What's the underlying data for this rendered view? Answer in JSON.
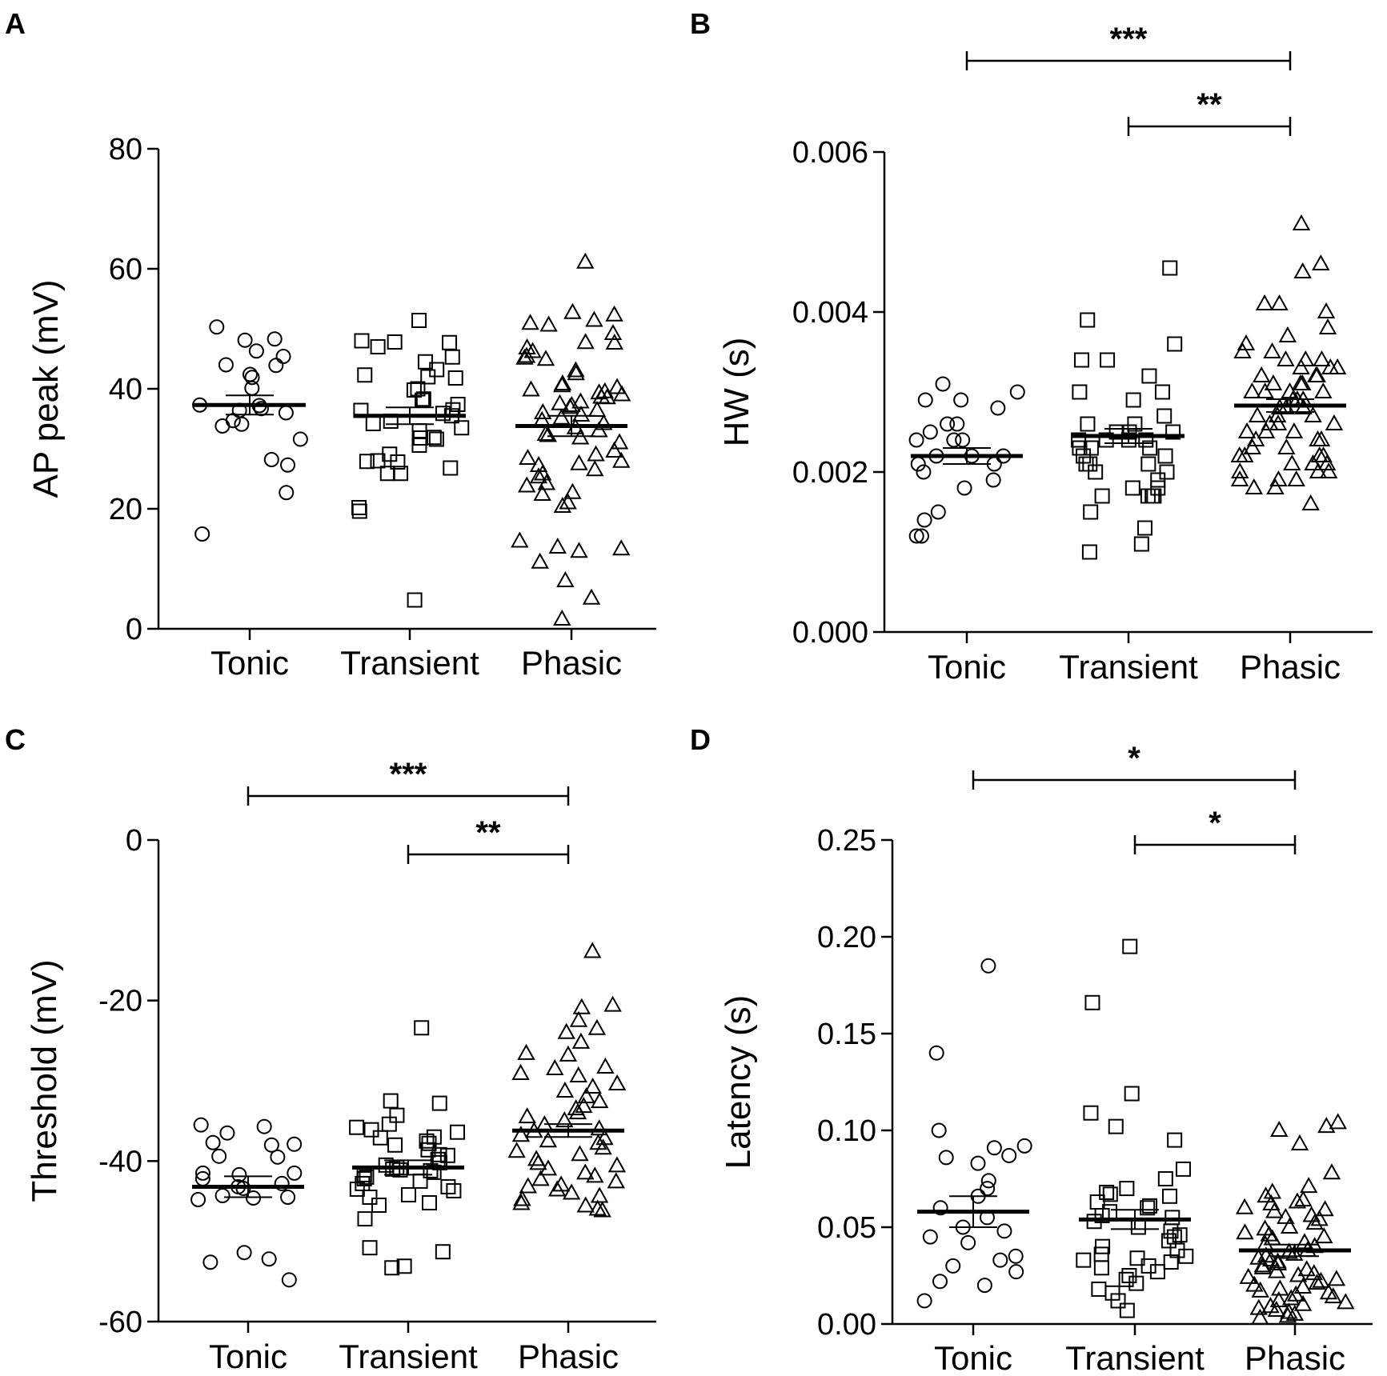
{
  "chart_data": [
    {
      "panel": "A",
      "type": "scatter",
      "ylabel": "AP peak (mV)",
      "categories": [
        "Tonic",
        "Transient",
        "Phasic"
      ],
      "ylim": [
        0,
        80
      ],
      "yticks": [
        "0",
        "20",
        "40",
        "60",
        "80"
      ],
      "marker": [
        "circle",
        "square",
        "triangle"
      ],
      "means": [
        37.3,
        35.5,
        33.8
      ],
      "sem": [
        1.6,
        1.4,
        1.7
      ],
      "significance": [],
      "series": [
        {
          "name": "Tonic",
          "values": [
            50.3,
            48.3,
            46.3,
            48.1,
            44.0,
            45.4,
            43.9,
            42.4,
            41.9,
            40.1,
            37.3,
            37.2,
            36.7,
            36.4,
            36.0,
            34.7,
            34.1,
            33.8,
            31.6,
            28.2,
            27.3,
            22.7,
            15.8
          ]
        },
        {
          "name": "Transient",
          "values": [
            51.4,
            48.0,
            47.8,
            47.7,
            47.0,
            45.3,
            44.5,
            43.2,
            42.3,
            42.0,
            41.8,
            40.0,
            39.8,
            38.3,
            38.1,
            37.4,
            36.5,
            36.4,
            35.9,
            35.5,
            34.6,
            34.2,
            33.5,
            33.0,
            31.9,
            31.8,
            31.6,
            30.6,
            29.1,
            28.0,
            27.9,
            27.8,
            26.8,
            25.9,
            25.9,
            20.2,
            19.6,
            4.8
          ]
        },
        {
          "name": "Phasic",
          "values": [
            61.1,
            52.7,
            52.3,
            51.4,
            50.9,
            50.6,
            49.2,
            47.7,
            47.6,
            46.8,
            46.2,
            45.4,
            45.1,
            44.9,
            43.0,
            42.5,
            40.8,
            40.5,
            40.2,
            39.8,
            39.5,
            39.3,
            39.0,
            38.6,
            38.5,
            37.8,
            37.5,
            37.2,
            36.9,
            36.4,
            36.0,
            35.6,
            35.1,
            34.7,
            34.2,
            33.5,
            33.0,
            32.4,
            32.2,
            31.8,
            31.0,
            29.6,
            29.0,
            28.4,
            27.9,
            27.5,
            27.2,
            26.5,
            25.8,
            25.3,
            24.2,
            23.8,
            22.7,
            22.4,
            21.0,
            20.4,
            14.6,
            13.6,
            13.3,
            12.9,
            11.1,
            8.0,
            5.1,
            1.6
          ]
        }
      ]
    },
    {
      "panel": "B",
      "type": "scatter",
      "ylabel": "HW (s)",
      "categories": [
        "Tonic",
        "Transient",
        "Phasic"
      ],
      "ylim": [
        0,
        0.006
      ],
      "yticks": [
        "0.000",
        "0.002",
        "0.004",
        "0.006"
      ],
      "marker": [
        "circle",
        "square",
        "triangle"
      ],
      "means": [
        0.0022,
        0.00245,
        0.00283
      ],
      "sem": [
        0.0001,
        9e-05,
        8e-05
      ],
      "significance": [
        {
          "from": 0,
          "to": 2,
          "label": "***"
        },
        {
          "from": 1,
          "to": 2,
          "label": "**"
        }
      ],
      "series": [
        {
          "name": "Tonic",
          "values": [
            0.0031,
            0.003,
            0.0029,
            0.0029,
            0.0028,
            0.0026,
            0.0026,
            0.0025,
            0.0024,
            0.0024,
            0.0024,
            0.0022,
            0.0022,
            0.0022,
            0.0021,
            0.0021,
            0.002,
            0.0019,
            0.0018,
            0.0015,
            0.0014,
            0.0012,
            0.0012
          ]
        },
        {
          "name": "Transient",
          "values": [
            0.00455,
            0.0039,
            0.0036,
            0.0034,
            0.0034,
            0.0032,
            0.003,
            0.003,
            0.0029,
            0.0027,
            0.0026,
            0.0026,
            0.0025,
            0.0025,
            0.0025,
            0.0024,
            0.0024,
            0.0024,
            0.0024,
            0.0023,
            0.0023,
            0.0023,
            0.0022,
            0.0022,
            0.0021,
            0.0021,
            0.0021,
            0.002,
            0.002,
            0.0019,
            0.0018,
            0.0018,
            0.0017,
            0.0017,
            0.0017,
            0.0017,
            0.0015,
            0.0013,
            0.0011,
            0.001
          ]
        },
        {
          "name": "Phasic",
          "values": [
            0.0051,
            0.0046,
            0.0045,
            0.0041,
            0.0041,
            0.004,
            0.0038,
            0.0037,
            0.0036,
            0.0035,
            0.0035,
            0.0034,
            0.0034,
            0.0034,
            0.0033,
            0.0033,
            0.0033,
            0.0032,
            0.0032,
            0.0032,
            0.0031,
            0.0031,
            0.0031,
            0.003,
            0.003,
            0.003,
            0.003,
            0.0029,
            0.0029,
            0.0029,
            0.0028,
            0.0028,
            0.0028,
            0.0027,
            0.0027,
            0.0027,
            0.0026,
            0.0026,
            0.0026,
            0.0025,
            0.0025,
            0.0025,
            0.0024,
            0.0024,
            0.0024,
            0.0023,
            0.0023,
            0.0022,
            0.0022,
            0.0022,
            0.0022,
            0.0021,
            0.0021,
            0.0021,
            0.002,
            0.002,
            0.002,
            0.0019,
            0.0019,
            0.0019,
            0.0018,
            0.0018,
            0.0016
          ]
        }
      ]
    },
    {
      "panel": "C",
      "type": "scatter",
      "ylabel": "Threshold (mV)",
      "categories": [
        "Tonic",
        "Transient",
        "Phasic"
      ],
      "ylim": [
        -60,
        0
      ],
      "yticks": [
        "-60",
        "-40",
        "-20",
        "0"
      ],
      "marker": [
        "circle",
        "square",
        "triangle"
      ],
      "means": [
        -43.2,
        -40.8,
        -36.2
      ],
      "sem": [
        1.3,
        0.9,
        0.8
      ],
      "significance": [
        {
          "from": 0,
          "to": 2,
          "label": "***"
        },
        {
          "from": 1,
          "to": 2,
          "label": "**"
        }
      ],
      "series": [
        {
          "name": "Tonic",
          "values": [
            -35.5,
            -35.7,
            -36.5,
            -37.7,
            -37.9,
            -38.0,
            -39.4,
            -39.5,
            -41.5,
            -41.5,
            -41.7,
            -42.2,
            -42.8,
            -43.2,
            -43.4,
            -44.3,
            -44.5,
            -44.6,
            -44.8,
            -51.4,
            -52.2,
            -52.6,
            -54.8
          ]
        },
        {
          "name": "Transient",
          "values": [
            -23.4,
            -32.5,
            -32.8,
            -34.3,
            -35.4,
            -35.8,
            -36.1,
            -36.4,
            -37.0,
            -37.1,
            -37.5,
            -37.8,
            -38.0,
            -38.6,
            -39.2,
            -39.3,
            -39.8,
            -40.2,
            -40.5,
            -40.8,
            -41.0,
            -41.1,
            -41.2,
            -41.4,
            -41.7,
            -42.0,
            -42.2,
            -42.5,
            -42.8,
            -43.2,
            -43.5,
            -43.7,
            -44.2,
            -44.5,
            -45.2,
            -45.5,
            -47.2,
            -50.8,
            -51.3,
            -53.1,
            -53.3
          ]
        },
        {
          "name": "Phasic",
          "values": [
            -13.9,
            -20.6,
            -20.9,
            -22.5,
            -23.5,
            -24.0,
            -25.2,
            -26.6,
            -26.8,
            -28.3,
            -28.5,
            -29.1,
            -29.4,
            -30.4,
            -30.8,
            -31.3,
            -32.0,
            -32.6,
            -33.2,
            -33.5,
            -34.0,
            -34.5,
            -35.0,
            -35.5,
            -36.0,
            -36.3,
            -36.8,
            -37.2,
            -37.5,
            -37.8,
            -38.4,
            -38.8,
            -39.2,
            -39.8,
            -40.3,
            -40.6,
            -41.0,
            -41.5,
            -41.9,
            -42.3,
            -42.6,
            -43.0,
            -43.2,
            -43.6,
            -44.0,
            -44.4,
            -44.8,
            -45.3,
            -45.6,
            -46.0,
            -46.2
          ]
        }
      ]
    },
    {
      "panel": "D",
      "type": "scatter",
      "ylabel": "Latency (s)",
      "categories": [
        "Tonic",
        "Transient",
        "Phasic"
      ],
      "ylim": [
        0,
        0.25
      ],
      "yticks": [
        "0.00",
        "0.05",
        "0.10",
        "0.15",
        "0.20",
        "0.25"
      ],
      "marker": [
        "circle",
        "square",
        "triangle"
      ],
      "means": [
        0.058,
        0.054,
        0.038
      ],
      "sem": [
        0.008,
        0.005,
        0.003
      ],
      "significance": [
        {
          "from": 0,
          "to": 2,
          "label": "*"
        },
        {
          "from": 1,
          "to": 2,
          "label": "*"
        }
      ],
      "series": [
        {
          "name": "Tonic",
          "values": [
            0.185,
            0.14,
            0.1,
            0.092,
            0.091,
            0.087,
            0.086,
            0.083,
            0.074,
            0.07,
            0.066,
            0.06,
            0.055,
            0.05,
            0.048,
            0.045,
            0.042,
            0.035,
            0.033,
            0.03,
            0.027,
            0.022,
            0.02,
            0.012
          ]
        },
        {
          "name": "Transient",
          "values": [
            0.195,
            0.166,
            0.119,
            0.109,
            0.102,
            0.095,
            0.08,
            0.075,
            0.07,
            0.068,
            0.067,
            0.066,
            0.063,
            0.061,
            0.06,
            0.058,
            0.056,
            0.055,
            0.053,
            0.05,
            0.048,
            0.046,
            0.045,
            0.043,
            0.04,
            0.038,
            0.036,
            0.035,
            0.034,
            0.033,
            0.032,
            0.03,
            0.029,
            0.027,
            0.025,
            0.023,
            0.021,
            0.018,
            0.016,
            0.012,
            0.007
          ]
        },
        {
          "name": "Phasic",
          "values": [
            0.104,
            0.102,
            0.1,
            0.093,
            0.078,
            0.071,
            0.068,
            0.066,
            0.064,
            0.063,
            0.062,
            0.06,
            0.059,
            0.058,
            0.056,
            0.055,
            0.054,
            0.052,
            0.05,
            0.049,
            0.047,
            0.046,
            0.045,
            0.044,
            0.042,
            0.041,
            0.04,
            0.038,
            0.037,
            0.036,
            0.035,
            0.034,
            0.033,
            0.032,
            0.031,
            0.03,
            0.029,
            0.028,
            0.027,
            0.026,
            0.025,
            0.024,
            0.023,
            0.022,
            0.021,
            0.02,
            0.019,
            0.018,
            0.017,
            0.016,
            0.015,
            0.014,
            0.013,
            0.012,
            0.011,
            0.01,
            0.009,
            0.008,
            0.007,
            0.006,
            0.005,
            0.004,
            0.003
          ]
        }
      ]
    }
  ]
}
